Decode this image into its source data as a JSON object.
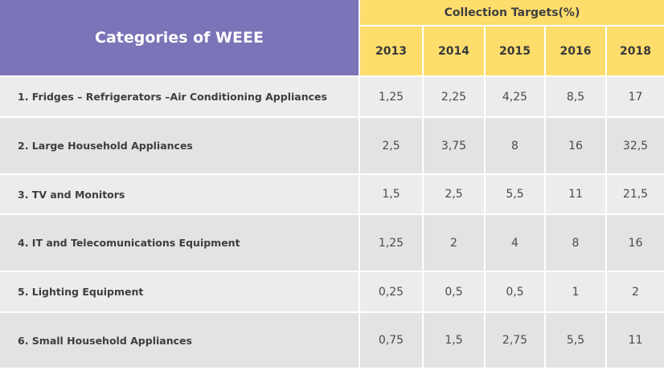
{
  "table": {
    "category_header": "Categories of WEEE",
    "targets_header": "Collection Targets(%)",
    "years": [
      "2013",
      "2014",
      "2015",
      "2016",
      "2018"
    ],
    "rows": [
      {
        "category": "1. Fridges – Refrigerators –Air Conditioning Appliances",
        "values": [
          "1,25",
          "2,25",
          "4,25",
          "8,5",
          "17"
        ]
      },
      {
        "category": "2. Large Household Appliances",
        "values": [
          "2,5",
          "3,75",
          "8",
          "16",
          "32,5"
        ]
      },
      {
        "category": "3. TV and Monitors",
        "values": [
          "1,5",
          "2,5",
          "5,5",
          "11",
          "21,5"
        ]
      },
      {
        "category": "4. IT and Telecomunications Equipment",
        "values": [
          "1,25",
          "2",
          "4",
          "8",
          "16"
        ]
      },
      {
        "category": "5. Lighting Equipment",
        "values": [
          "0,25",
          "0,5",
          "0,5",
          "1",
          "2"
        ]
      },
      {
        "category": "6. Small Household Appliances",
        "values": [
          "0,75",
          "1,5",
          "2,75",
          "5,5",
          "11"
        ]
      }
    ]
  },
  "colors": {
    "category_header_bg": "#7b74b8",
    "year_header_bg": "#fddd6c",
    "row_light_bg": "#ececec",
    "row_dark_bg": "#e3e3e3"
  }
}
